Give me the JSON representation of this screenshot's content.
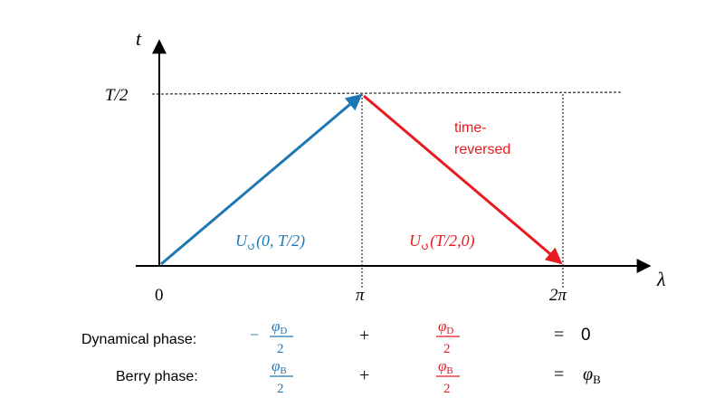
{
  "axes": {
    "y_label": "t",
    "x_label": "λ",
    "y_tick": "T/2",
    "x_ticks": [
      "0",
      "π",
      "2π"
    ]
  },
  "arrows": {
    "forward": {
      "label_op": "U",
      "label_sub": "↺",
      "label_args": "(0, T/2)",
      "color": "#1f77b4"
    },
    "reversed": {
      "label_op": "U",
      "label_sub": "↺",
      "label_args": "(T/2,0)",
      "annotation_line1": "time-",
      "annotation_line2": "reversed",
      "color": "#e8191f"
    }
  },
  "equations": {
    "dynamical": {
      "label": "Dynamical phase:",
      "term1_sign": "−",
      "term1_num": "φ",
      "term1_sub": "D",
      "term1_den": "2",
      "op": "+",
      "term2_num": "φ",
      "term2_sub": "D",
      "term2_den": "2",
      "equals": "=",
      "result": "0"
    },
    "berry": {
      "label": "Berry phase:",
      "term1_num": "φ",
      "term1_sub": "B",
      "term1_den": "2",
      "op": "+",
      "term2_num": "φ",
      "term2_sub": "B",
      "term2_den": "2",
      "equals": "=",
      "result": "φ",
      "result_sub": "B"
    }
  },
  "colors": {
    "blue": "#1f77b4",
    "red": "#e8191f",
    "axis": "#000000"
  }
}
